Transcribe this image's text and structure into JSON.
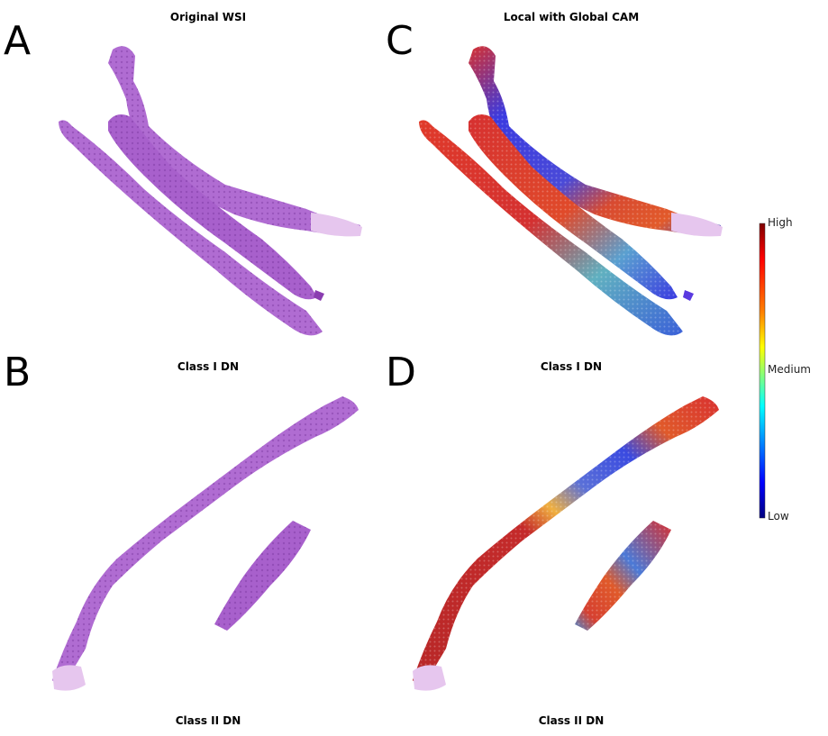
{
  "panels": {
    "a": {
      "letter": "A",
      "title": "Original WSI"
    },
    "b": {
      "letter": "B",
      "title": "Class I DN"
    },
    "c": {
      "letter": "C",
      "title": "Local with Global CAM"
    },
    "d": {
      "letter": "D",
      "title": "Class I DN"
    },
    "bottom_left_caption": "Class II DN",
    "bottom_right_caption": "Class II DN"
  },
  "colorbar": {
    "high": "High",
    "medium": "Medium",
    "low": "Low",
    "colormap": "jet",
    "colors": [
      "#7f0000",
      "#ff0000",
      "#ff8000",
      "#ffff00",
      "#80ff80",
      "#00ffff",
      "#0080ff",
      "#0000ff",
      "#00007f"
    ]
  },
  "colors": {
    "he_stain": "#b06cd2",
    "he_stain_dark": "#8e45b5",
    "cam_high": "#c42a2a",
    "cam_low": "#3b3be0"
  }
}
